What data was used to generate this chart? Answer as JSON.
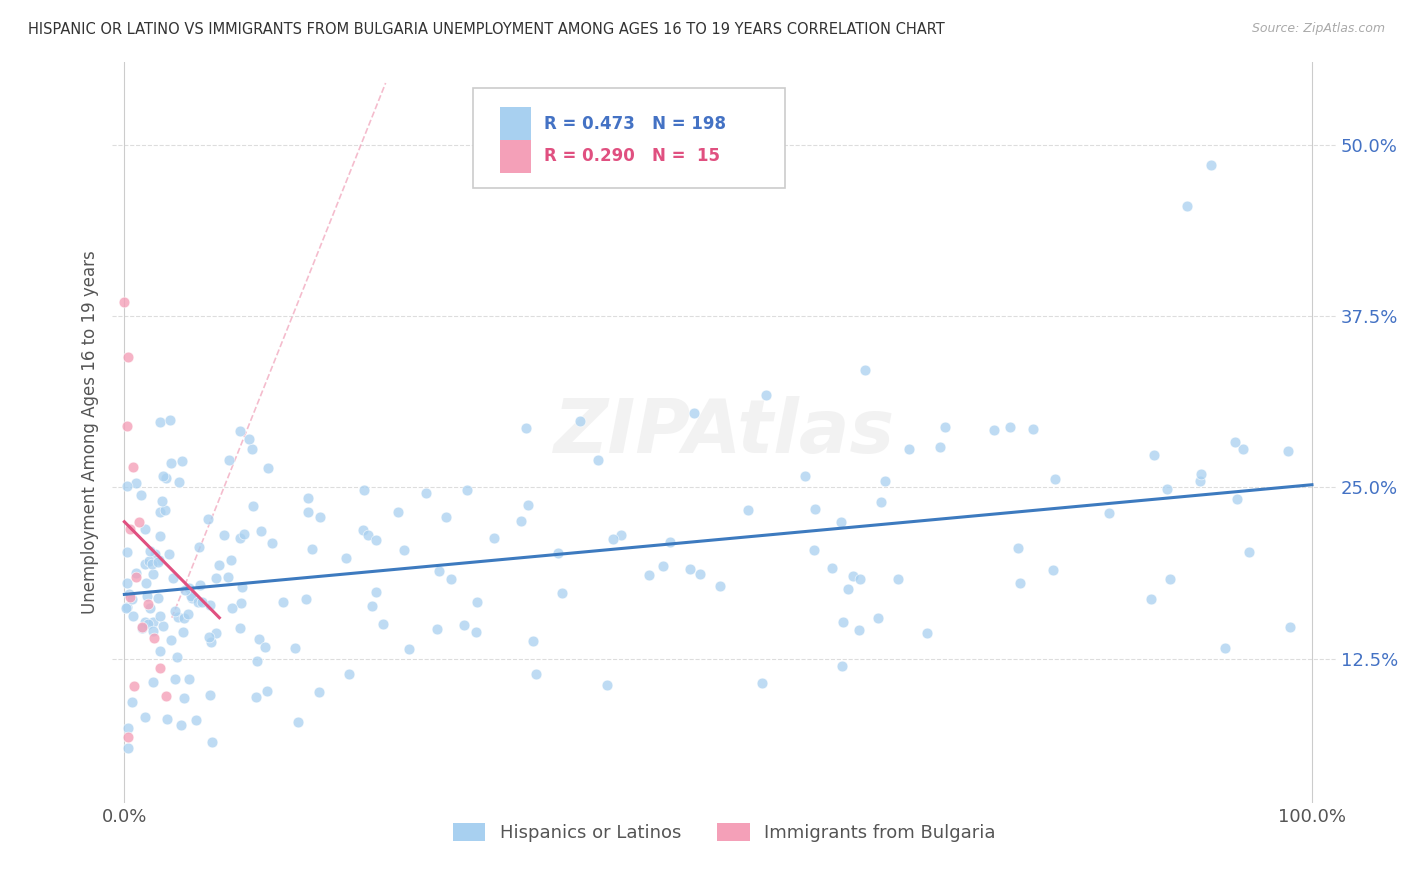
{
  "title": "HISPANIC OR LATINO VS IMMIGRANTS FROM BULGARIA UNEMPLOYMENT AMONG AGES 16 TO 19 YEARS CORRELATION CHART",
  "source": "Source: ZipAtlas.com",
  "ylabel": "Unemployment Among Ages 16 to 19 years",
  "ytick_values": [
    0.125,
    0.25,
    0.375,
    0.5
  ],
  "ytick_labels": [
    "12.5%",
    "25.0%",
    "37.5%",
    "50.0%"
  ],
  "xlim": [
    -0.01,
    1.02
  ],
  "ylim": [
    0.02,
    0.56
  ],
  "legend_r1": "R = 0.473",
  "legend_n1": "N = 198",
  "legend_r2": "R = 0.290",
  "legend_n2": "N =  15",
  "color_blue": "#a8d0f0",
  "color_pink": "#f4a0b8",
  "color_blue_line": "#3d7abf",
  "color_pink_line": "#e05080",
  "color_dashed": "#f0a0b8",
  "watermark": "ZIPAtlas",
  "label1": "Hispanics or Latinos",
  "label2": "Immigrants from Bulgaria",
  "blue_line_x0": 0.0,
  "blue_line_x1": 1.0,
  "blue_line_y0": 0.172,
  "blue_line_y1": 0.252,
  "pink_line_x0": 0.0,
  "pink_line_x1": 0.08,
  "pink_line_y0": 0.225,
  "pink_line_y1": 0.155,
  "dashed_line_x0": 0.04,
  "dashed_line_x1": 0.22,
  "dashed_line_y0": 0.155,
  "dashed_line_y1": 0.545
}
